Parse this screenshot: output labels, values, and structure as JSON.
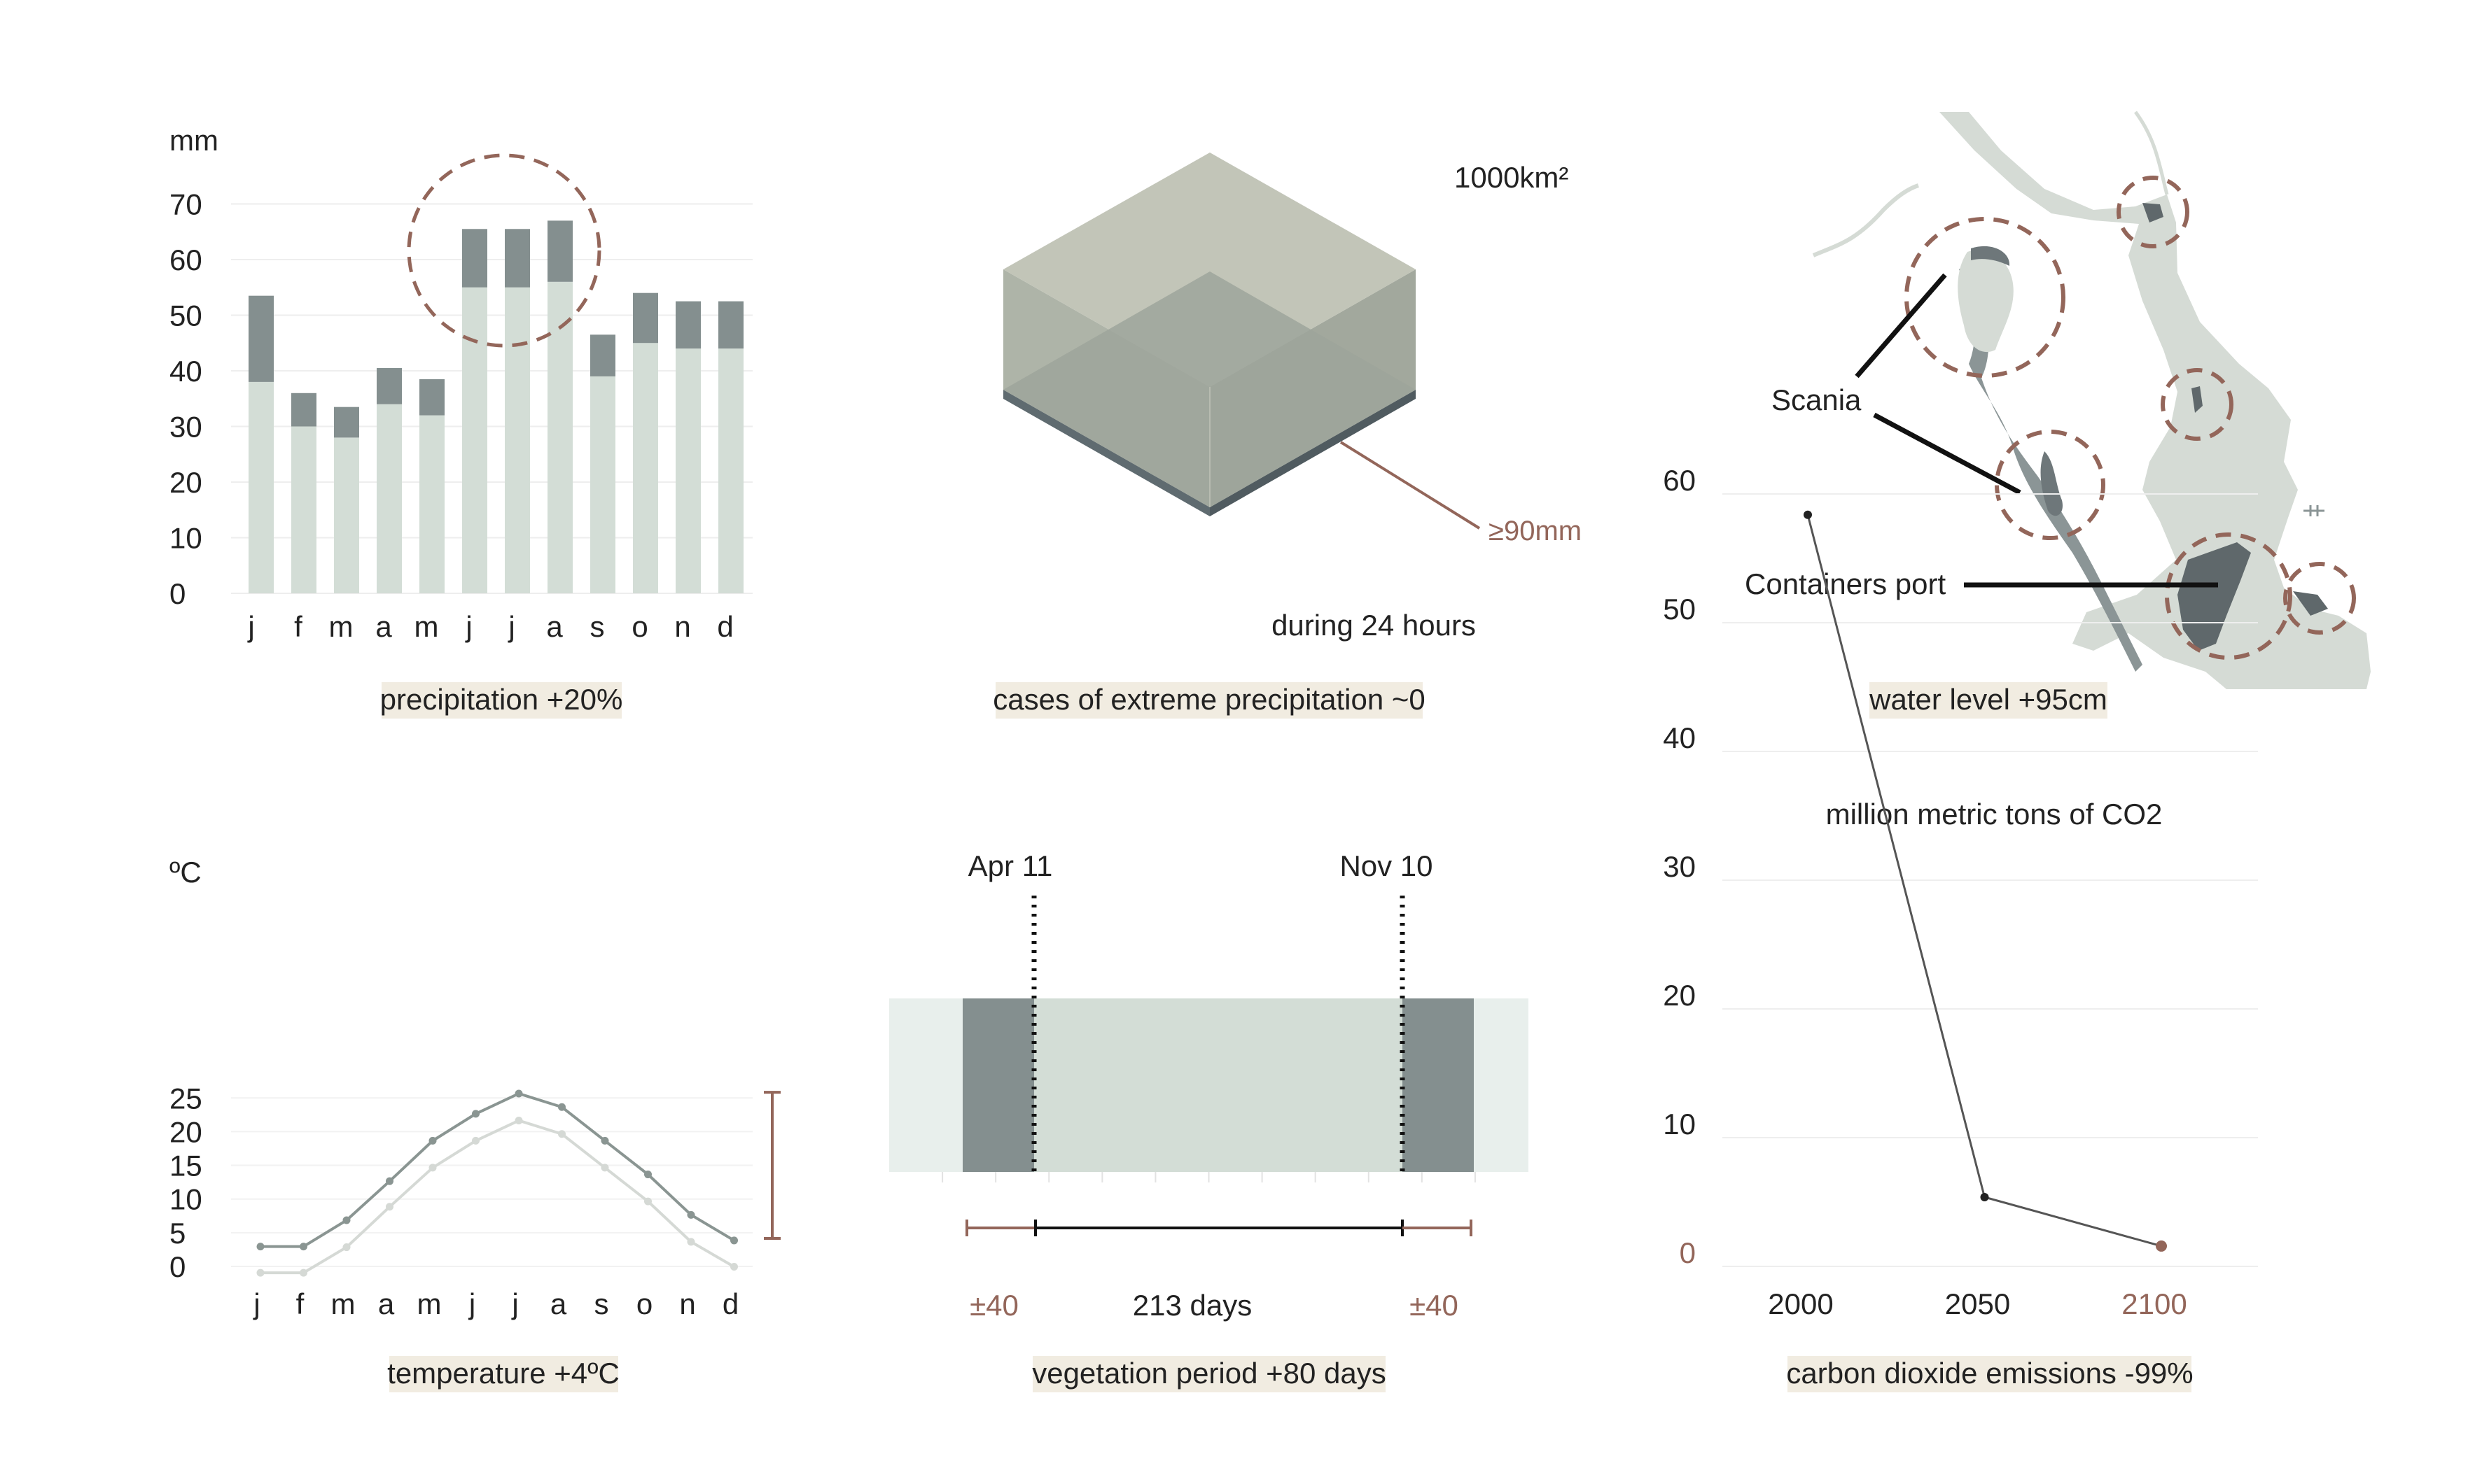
{
  "panels": {
    "precipitation": {
      "caption": "precipitation +20%",
      "unit_label": "mm",
      "y_ticks": [
        "0",
        "10",
        "20",
        "30",
        "40",
        "50",
        "60",
        "70"
      ]
    },
    "extreme": {
      "caption": "cases of extreme precipitation ~0",
      "area_label": "1000km²",
      "depth_label": "≥90mm",
      "duration_label": "during 24 hours"
    },
    "water": {
      "caption": "water level +95cm",
      "label_scania": "Scania",
      "label_port": "Containers port"
    },
    "temperature": {
      "caption": "temperature +4ºC",
      "unit_label": "ºC",
      "y_ticks": [
        "0",
        "5",
        "10",
        "15",
        "20",
        "25"
      ]
    },
    "vegetation": {
      "caption": "vegetation period +80 days",
      "start_label": "Apr 11",
      "end_label": "Nov 10",
      "days_label": "213 days",
      "pm_left": "±40",
      "pm_right": "±40"
    },
    "co2": {
      "caption": "carbon dioxide emissions -99%",
      "title": "million metric tons of CO2",
      "y_ticks": [
        "0",
        "10",
        "20",
        "30",
        "40",
        "50",
        "60"
      ]
    }
  },
  "colors": {
    "base": "#d3ddd6",
    "increase": "#848f8f",
    "accent": "#93665a",
    "highlight": "#f1ece1",
    "light_band": "#e8efec"
  },
  "chart_data": [
    {
      "type": "bar",
      "categories": [
        "j",
        "f",
        "m",
        "a",
        "m",
        "j",
        "j",
        "a",
        "s",
        "o",
        "n",
        "d"
      ],
      "series": [
        {
          "values": [
            38,
            30,
            28,
            34,
            32,
            55,
            55,
            56,
            39,
            45,
            44,
            44
          ]
        },
        {
          "values": [
            53.5,
            36,
            33.5,
            40.5,
            38.5,
            65.5,
            65.5,
            67,
            46.5,
            54,
            52.5,
            52.5
          ]
        }
      ],
      "ylabel": "mm",
      "ylim": [
        0,
        70
      ],
      "highlight": [
        "j",
        "j",
        "a"
      ],
      "grid": true
    },
    {
      "type": "line",
      "categories": [
        "j",
        "f",
        "m",
        "a",
        "m",
        "j",
        "j",
        "a",
        "s",
        "o",
        "n",
        "d"
      ],
      "series": [
        {
          "values": [
            0.4,
            0.4,
            4.2,
            10.2,
            16.0,
            20.0,
            23.0,
            21.0,
            16.0,
            11.0,
            5.0,
            1.3
          ]
        },
        {
          "values": [
            4.3,
            4.3,
            8.2,
            14.0,
            20.0,
            24.0,
            27.0,
            25.0,
            20.0,
            15.0,
            9.0,
            5.2
          ]
        }
      ],
      "ylabel": "ºC",
      "ylim": [
        0,
        27
      ],
      "range_marker": [
        5.5,
        27.2
      ],
      "grid": true
    },
    {
      "type": "line",
      "x": [
        2000,
        2050,
        2100
      ],
      "values": [
        58,
        5,
        1.2
      ],
      "title": "million metric tons of CO2",
      "ylim": [
        0,
        60
      ],
      "grid": true
    }
  ]
}
